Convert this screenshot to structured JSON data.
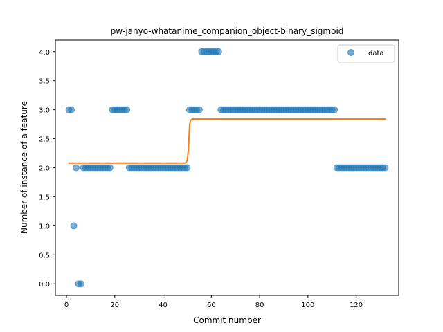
{
  "chart_data": {
    "type": "scatter",
    "title": "pw-janyo-whatanime_companion_object-binary_sigmoid",
    "xlabel": "Commit number",
    "ylabel": "Number of instance of a feature",
    "xlim": [
      -4.6,
      137.6
    ],
    "ylim": [
      -0.2,
      4.2
    ],
    "xticks": [
      0,
      20,
      40,
      60,
      80,
      100,
      120
    ],
    "yticks": [
      0.0,
      0.5,
      1.0,
      1.5,
      2.0,
      2.5,
      3.0,
      3.5,
      4.0
    ],
    "xtick_labels": [
      "0",
      "20",
      "40",
      "60",
      "80",
      "100",
      "120"
    ],
    "ytick_labels": [
      "0.0",
      "0.5",
      "1.0",
      "1.5",
      "2.0",
      "2.5",
      "3.0",
      "3.5",
      "4.0"
    ],
    "legend": {
      "position": "top-right",
      "entries": [
        "data"
      ]
    },
    "grid": false,
    "colors": {
      "data": "#1f77b4",
      "fit": "#ff7f0e"
    },
    "series": [
      {
        "name": "data",
        "kind": "scatter",
        "x": [
          1,
          2,
          3,
          4,
          5,
          6,
          7,
          8,
          9,
          10,
          11,
          12,
          13,
          14,
          15,
          16,
          17,
          18,
          19,
          20,
          21,
          22,
          23,
          24,
          25,
          26,
          27,
          28,
          29,
          30,
          31,
          32,
          33,
          34,
          35,
          36,
          37,
          38,
          39,
          40,
          41,
          42,
          43,
          44,
          45,
          46,
          47,
          48,
          49,
          50,
          51,
          52,
          53,
          54,
          55,
          56,
          57,
          58,
          59,
          60,
          61,
          62,
          63,
          64,
          65,
          66,
          67,
          68,
          69,
          70,
          71,
          72,
          73,
          74,
          75,
          76,
          77,
          78,
          79,
          80,
          81,
          82,
          83,
          84,
          85,
          86,
          87,
          88,
          89,
          90,
          91,
          92,
          93,
          94,
          95,
          96,
          97,
          98,
          99,
          100,
          101,
          102,
          103,
          104,
          105,
          106,
          107,
          108,
          109,
          110,
          111,
          112,
          113,
          114,
          115,
          116,
          117,
          118,
          119,
          120,
          121,
          122,
          123,
          124,
          125,
          126,
          127,
          128,
          129,
          130,
          131,
          132
        ],
        "y": [
          3,
          3,
          1,
          2,
          0,
          0,
          2,
          2,
          2,
          2,
          2,
          2,
          2,
          2,
          2,
          2,
          2,
          2,
          3,
          3,
          3,
          3,
          3,
          3,
          3,
          2,
          2,
          2,
          2,
          2,
          2,
          2,
          2,
          2,
          2,
          2,
          2,
          2,
          2,
          2,
          2,
          2,
          2,
          2,
          2,
          2,
          2,
          2,
          2,
          2,
          3,
          3,
          3,
          3,
          3,
          4,
          4,
          4,
          4,
          4,
          4,
          4,
          4,
          3,
          3,
          3,
          3,
          3,
          3,
          3,
          3,
          3,
          3,
          3,
          3,
          3,
          3,
          3,
          3,
          3,
          3,
          3,
          3,
          3,
          3,
          3,
          3,
          3,
          3,
          3,
          3,
          3,
          3,
          3,
          3,
          3,
          3,
          3,
          3,
          3,
          3,
          3,
          3,
          3,
          3,
          3,
          3,
          3,
          3,
          3,
          3,
          2,
          2,
          2,
          2,
          2,
          2,
          2,
          2,
          2,
          2,
          2,
          2,
          2,
          2,
          2,
          2,
          2,
          2,
          2,
          2,
          2
        ]
      },
      {
        "name": "",
        "kind": "line",
        "x": [
          1,
          49,
          49.5,
          50,
          50.5,
          51,
          51.5,
          52,
          132
        ],
        "y": [
          2.08,
          2.08,
          2.09,
          2.12,
          2.3,
          2.75,
          2.82,
          2.84,
          2.84
        ]
      }
    ]
  }
}
